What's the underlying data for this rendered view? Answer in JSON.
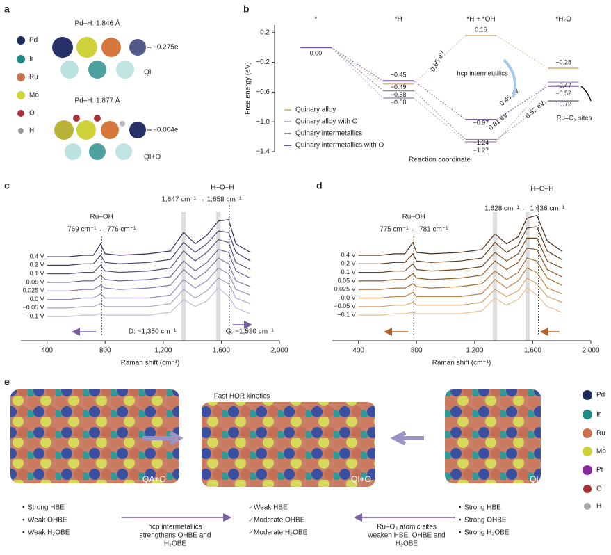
{
  "panel_labels": [
    "a",
    "b",
    "c",
    "d",
    "e"
  ],
  "panel_a": {
    "legend": [
      "Pd",
      "Ir",
      "Ru",
      "Mo",
      "O",
      "H"
    ],
    "top": {
      "bond": "Pd–H: 1.846 Å",
      "charge": "−0.275e",
      "label": "QI"
    },
    "bottom": {
      "bond": "Pd–H: 1.877 Å",
      "charge": "−0.004e",
      "label": "QI+O"
    }
  },
  "chart_data": [
    {
      "type": "level",
      "categories": [
        "*",
        "*H",
        "*H + *OH",
        "*H₂O"
      ],
      "y_label": "Free energy (eV)",
      "x_label": "Reaction coordinate",
      "ylim": [
        -1.4,
        0.3
      ],
      "yticks": [
        0.2,
        {
          "value": -0.2,
          "label": "−0.2"
        },
        {
          "value": -0.6,
          "label": "−0.6"
        },
        {
          "value": -1.0,
          "label": "−1.0"
        },
        {
          "value": -1.4,
          "label": "−1.4"
        }
      ],
      "legend": "lower left",
      "series": [
        {
          "name": "Quinary alloy",
          "color": "#d8bf98",
          "values": [
            0,
            -0.49,
            0.16,
            -0.28
          ],
          "value_labels": [
            "0.00",
            "−0.49",
            "0.16",
            "−0.28"
          ]
        },
        {
          "name": "Quinary alloy with O",
          "color": "#b9aac8",
          "values": [
            0,
            -0.68,
            -1.27,
            -0.47
          ],
          "value_labels": [
            null,
            "−0.68",
            "−1.27",
            "−0.47"
          ]
        },
        {
          "name": "Quinary intermetallics",
          "color": "#8f8793",
          "values": [
            0,
            -0.58,
            -1.24,
            -0.72
          ],
          "value_labels": [
            null,
            "−0.58",
            "−1.24",
            "−0.72"
          ]
        },
        {
          "name": "Quinary intermetallics with O",
          "color": "#7a5ca8",
          "values": [
            0,
            -0.45,
            -0.97,
            -0.52
          ],
          "value_labels": [
            null,
            "−0.45",
            "−0.97",
            "−0.52"
          ]
        }
      ],
      "annotations": [
        "0.65 eV",
        "0.45 eV",
        "0.81 eV",
        "0.52 eV",
        "hcp intermetallics",
        "Ru–O₃ sites"
      ]
    },
    {
      "type": "line",
      "x_label": "Raman shift (cm⁻¹)",
      "xlim": [
        220,
        2000
      ],
      "ylim": [
        0,
        100
      ],
      "xticks": [
        400,
        800,
        {
          "value": 1200,
          "label": "1,200"
        },
        {
          "value": 1600,
          "label": "1,600"
        },
        {
          "value": 2000,
          "label": "2,000"
        }
      ],
      "x": [
        400,
        550,
        650,
        720,
        769,
        800,
        900,
        1100,
        1250,
        1340,
        1420,
        1500,
        1580,
        1650,
        1700,
        1800
      ],
      "series": [
        {
          "name": "0.4 V",
          "color": "#3b2a5c",
          "values": [
            59,
            59,
            60,
            60,
            68,
            61,
            60,
            61,
            63,
            76,
            68,
            74,
            84,
            85,
            68,
            62
          ]
        },
        {
          "name": "0.2 V",
          "color": "#4c3a70",
          "values": [
            53,
            53,
            54,
            54,
            60,
            55,
            54,
            55,
            57,
            69,
            62,
            68,
            77,
            76,
            62,
            56
          ]
        },
        {
          "name": "0.1 V",
          "color": "#5d4b84",
          "values": [
            47,
            47,
            48,
            48,
            53,
            49,
            48,
            49,
            51,
            63,
            56,
            62,
            71,
            69,
            55,
            50
          ]
        },
        {
          "name": "0.05 V",
          "color": "#705e97",
          "values": [
            41,
            41,
            42,
            42,
            46,
            43,
            42,
            43,
            45,
            56,
            49,
            55,
            64,
            62,
            49,
            44
          ]
        },
        {
          "name": "0.025 V",
          "color": "#8472a9",
          "values": [
            35,
            35,
            36,
            36,
            39,
            37,
            36,
            37,
            39,
            50,
            43,
            49,
            58,
            54,
            42,
            38
          ]
        },
        {
          "name": "0.0 V",
          "color": "#9887ba",
          "values": [
            29,
            29,
            30,
            30,
            33,
            30,
            30,
            30,
            32,
            43,
            37,
            42,
            51,
            47,
            36,
            32
          ]
        },
        {
          "name": "−0.05 V",
          "color": "#ad9ecb",
          "values": [
            23,
            23,
            24,
            24,
            26,
            24,
            24,
            24,
            26,
            36,
            30,
            35,
            44,
            40,
            30,
            26
          ]
        },
        {
          "name": "−0.1 V",
          "color": "#c6badc",
          "values": [
            17,
            17,
            18,
            18,
            19,
            18,
            18,
            18,
            20,
            29,
            24,
            28,
            37,
            31,
            23,
            19
          ]
        }
      ],
      "band_x": [
        1340,
        1580
      ],
      "marker_x": [
        776,
        1655
      ],
      "annotations": [
        "Ru–OH",
        "769 cm⁻¹ ← 776 cm⁻¹",
        "H–O–H",
        "1,647 cm⁻¹ → 1,658 cm⁻¹",
        "D: ~1,350 cm⁻¹",
        "G: ~1,580 cm⁻¹"
      ]
    },
    {
      "type": "line",
      "x_label": "Raman shift (cm⁻¹)",
      "xlim": [
        220,
        2000
      ],
      "ylim": [
        0,
        100
      ],
      "xticks": [
        400,
        800,
        {
          "value": 1200,
          "label": "1,200"
        },
        {
          "value": 1600,
          "label": "1,600"
        },
        {
          "value": 2000,
          "label": "2,000"
        }
      ],
      "x": [
        400,
        550,
        650,
        720,
        775,
        800,
        900,
        1100,
        1250,
        1340,
        1420,
        1500,
        1560,
        1628,
        1700,
        1800
      ],
      "series": [
        {
          "name": "0.4 V",
          "color": "#4a2a12",
          "values": [
            60,
            60,
            61,
            61,
            69,
            62,
            61,
            62,
            64,
            75,
            68,
            73,
            86,
            88,
            70,
            63
          ]
        },
        {
          "name": "0.2 V",
          "color": "#5e3716",
          "values": [
            54,
            54,
            55,
            55,
            61,
            56,
            55,
            56,
            58,
            69,
            62,
            67,
            79,
            80,
            63,
            57
          ]
        },
        {
          "name": "0.1 V",
          "color": "#76461c",
          "values": [
            48,
            48,
            49,
            49,
            54,
            50,
            49,
            50,
            52,
            62,
            56,
            61,
            72,
            72,
            56,
            51
          ]
        },
        {
          "name": "0.05 V",
          "color": "#8f5724",
          "values": [
            42,
            42,
            43,
            43,
            47,
            44,
            43,
            44,
            46,
            56,
            50,
            55,
            65,
            64,
            50,
            45
          ]
        },
        {
          "name": "0.025 V",
          "color": "#a96b33",
          "values": [
            36,
            36,
            37,
            37,
            40,
            38,
            37,
            38,
            40,
            49,
            43,
            48,
            58,
            56,
            44,
            39
          ]
        },
        {
          "name": "0.0 V",
          "color": "#c48448",
          "values": [
            30,
            30,
            31,
            31,
            34,
            31,
            31,
            31,
            33,
            43,
            37,
            42,
            51,
            48,
            37,
            33
          ]
        },
        {
          "name": "−0.05 V",
          "color": "#d9a06a",
          "values": [
            24,
            24,
            25,
            25,
            27,
            25,
            25,
            25,
            27,
            36,
            31,
            35,
            44,
            40,
            31,
            27
          ]
        },
        {
          "name": "−0.1 V",
          "color": "#ebbf93",
          "values": [
            18,
            18,
            19,
            19,
            20,
            19,
            19,
            19,
            21,
            30,
            25,
            29,
            37,
            32,
            24,
            20
          ]
        }
      ],
      "band_x": [
        1340,
        1565
      ],
      "marker_x": [
        781,
        1640
      ],
      "annotations": [
        "Ru–OH",
        "775 cm⁻¹ ← 781 cm⁻¹",
        "H–O–H",
        "1,628 cm⁻¹ ← 1,636 cm⁻¹"
      ]
    }
  ],
  "panel_e": {
    "title": "Fast HOR kinetics",
    "images": [
      "QA+O",
      "QI+O",
      "QI"
    ],
    "legend": [
      "Pd",
      "Ir",
      "Ru",
      "Mo",
      "Pt",
      "O",
      "H"
    ],
    "left": [
      "Strong HBE",
      "Weak OHBE",
      "Weak H₂OBE"
    ],
    "middle": [
      "Weak HBE",
      "Moderate OHBE",
      "Moderate H₂OBE"
    ],
    "right": [
      "Strong HBE",
      "Strong OHBE",
      "Strong H₂OBE"
    ],
    "arrow_left": [
      "hcp intermetallics",
      "strengthens OHBE and",
      "H₂OBE"
    ],
    "arrow_right": [
      "Ru–O₃ atomic sites",
      "weaken HBE, OHBE and",
      "H₂OBE"
    ]
  }
}
